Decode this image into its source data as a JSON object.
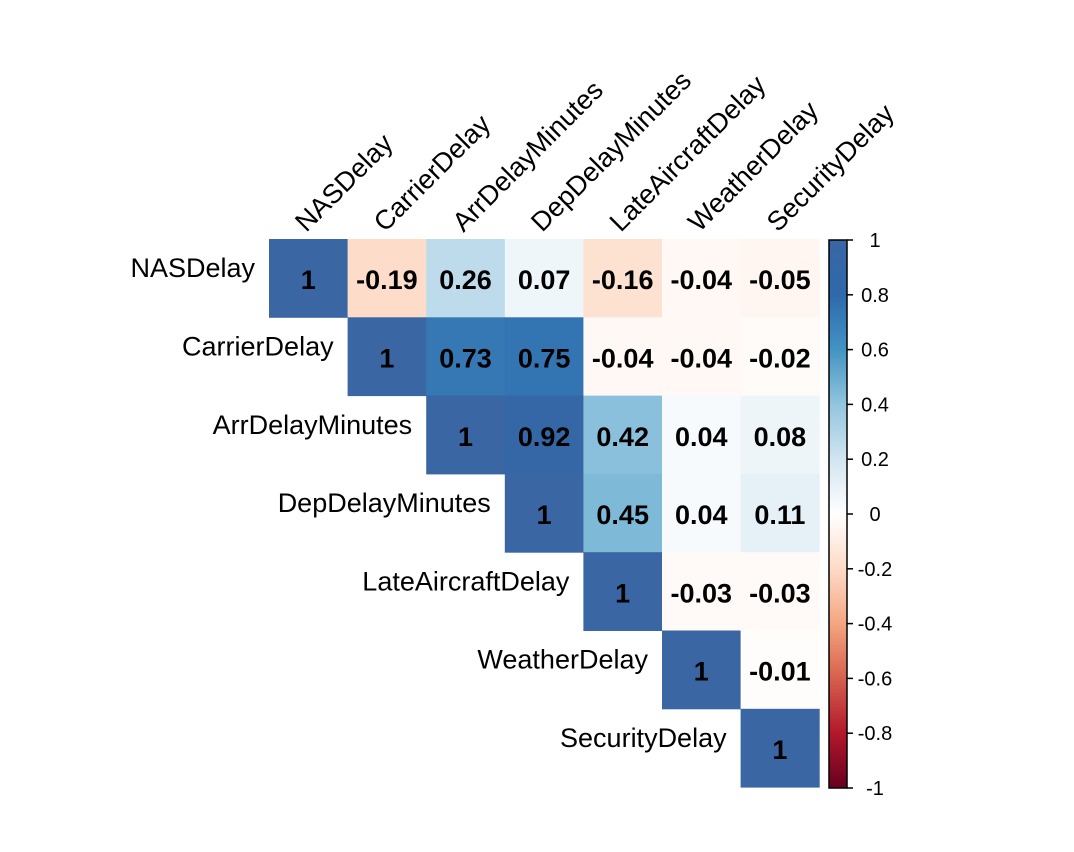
{
  "chart_data": {
    "type": "heatmap",
    "variables": [
      "NASDelay",
      "CarrierDelay",
      "ArrDelayMinutes",
      "DepDelayMinutes",
      "LateAircraftDelay",
      "WeatherDelay",
      "SecurityDelay"
    ],
    "layout": "upper-triangle",
    "matrix": [
      [
        1,
        -0.19,
        0.26,
        0.07,
        -0.16,
        -0.04,
        -0.05
      ],
      [
        null,
        1,
        0.73,
        0.75,
        -0.04,
        -0.04,
        -0.02
      ],
      [
        null,
        null,
        1,
        0.92,
        0.42,
        0.04,
        0.08
      ],
      [
        null,
        null,
        null,
        1,
        0.45,
        0.04,
        0.11
      ],
      [
        null,
        null,
        null,
        null,
        1,
        -0.03,
        -0.03
      ],
      [
        null,
        null,
        null,
        null,
        null,
        1,
        -0.01
      ],
      [
        null,
        null,
        null,
        null,
        null,
        null,
        1
      ]
    ],
    "colorbar": {
      "range": [
        -1,
        1
      ],
      "ticks": [
        "1",
        "0.8",
        "0.6",
        "0.4",
        "0.2",
        "0",
        "-0.2",
        "-0.4",
        "-0.6",
        "-0.8",
        "-1"
      ],
      "low_color": "#B2182B",
      "mid_color": "#FFFFFF",
      "high_color": "#2166AC"
    },
    "diagonal_color": "#3A66A3",
    "title": "",
    "xlabel": "",
    "ylabel": ""
  }
}
